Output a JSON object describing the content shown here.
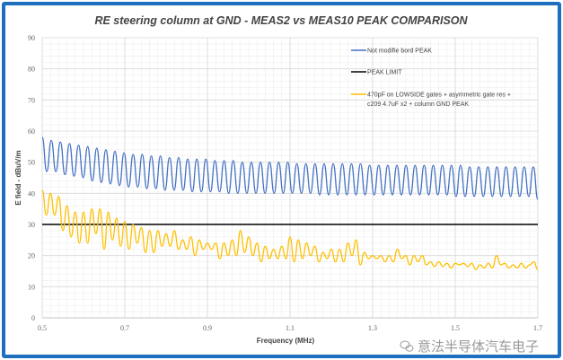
{
  "chart_data": {
    "type": "line",
    "title": "RE steering column  at GND - MEAS2 vs MEAS10  PEAK  COMPARISON",
    "xlabel": "Frequency (MHz)",
    "ylabel": "E field - dBuV/m",
    "xlim": [
      0.5,
      1.7
    ],
    "ylim": [
      0,
      90
    ],
    "xticks": [
      "0.5",
      "0.7",
      "0.9",
      "1.1",
      "1.3",
      "1.5",
      "1.7"
    ],
    "yticks": [
      "0",
      "10",
      "20",
      "30",
      "40",
      "50",
      "60",
      "70",
      "80",
      "90"
    ],
    "grid": true,
    "legend_position": "top-right",
    "series": [
      {
        "name": "Not modifie bord PEAK",
        "color": "#4472c4",
        "peaks": [
          58,
          57,
          56.5,
          56,
          55.5,
          55,
          54.5,
          54,
          53.5,
          53,
          52.5,
          52.5,
          52,
          52,
          51.5,
          51.5,
          51,
          51,
          51,
          50.5,
          50.5,
          50.5,
          50,
          50,
          50,
          50,
          50,
          50,
          49.5,
          49.5,
          49.5,
          49.5,
          49.5,
          49.5,
          49.5,
          49.5,
          49,
          49,
          49,
          49,
          49,
          49,
          49,
          49,
          49,
          49,
          49,
          48.5,
          48.5,
          48.5,
          48.5,
          48.5,
          48.5,
          48.5,
          48.5
        ],
        "troughs": [
          47,
          47,
          46,
          45.5,
          45,
          44,
          43.5,
          43,
          42.5,
          42,
          42,
          41.5,
          41.5,
          41,
          41,
          41,
          40.5,
          40.5,
          40.5,
          40.5,
          40,
          40,
          40,
          40,
          40,
          40,
          40,
          40,
          40,
          40,
          39.5,
          39.5,
          39.5,
          39.5,
          39.5,
          39.5,
          39.5,
          39.5,
          39.5,
          39.5,
          39.5,
          39.5,
          39.5,
          39.5,
          39.5,
          39,
          39,
          39,
          39,
          39,
          39,
          39,
          39,
          39,
          38
        ]
      },
      {
        "name": "PEAK LIMIT",
        "color": "#000000",
        "values": [
          30,
          30
        ]
      },
      {
        "name": "470pF on LOWSIDE gates + asymmetric gate res + c209 4.7uF x2 + column GND PEAK",
        "legend_lines": [
          "470pF on LOWSIDE gates + asymmetric gate res +",
          "c209 4.7uF x2 + column GND PEAK"
        ],
        "color": "#ffc000",
        "x_step": 0.01,
        "values": [
          41,
          33,
          40,
          33,
          39,
          28,
          36,
          26,
          34,
          24,
          34,
          24,
          35,
          27,
          35,
          22,
          34,
          25,
          32,
          23,
          31,
          22,
          30,
          24,
          29,
          21,
          28,
          21,
          28,
          23,
          27,
          23,
          28,
          22,
          25,
          22,
          26,
          20,
          25,
          22,
          24,
          22,
          24,
          19,
          24,
          20,
          25,
          20,
          28,
          21,
          26,
          20,
          24,
          18,
          23,
          19,
          22,
          19,
          23,
          19,
          26,
          18,
          25,
          19,
          24,
          20,
          23,
          18,
          21,
          19,
          22,
          18,
          22,
          18,
          24,
          20,
          25,
          17,
          21,
          19,
          20,
          19,
          20,
          18,
          20,
          18,
          22,
          19,
          20,
          17,
          20,
          18,
          20,
          17,
          18,
          16.5,
          18,
          16.5,
          17.5,
          16,
          17.5,
          17,
          17.5,
          16.5,
          17.5,
          15.5,
          17,
          16,
          17.5,
          16,
          20,
          17,
          17.5,
          16,
          17,
          16,
          17.5,
          16,
          17,
          18,
          15.5
        ]
      }
    ]
  },
  "watermark": "意法半导体汽车电子"
}
